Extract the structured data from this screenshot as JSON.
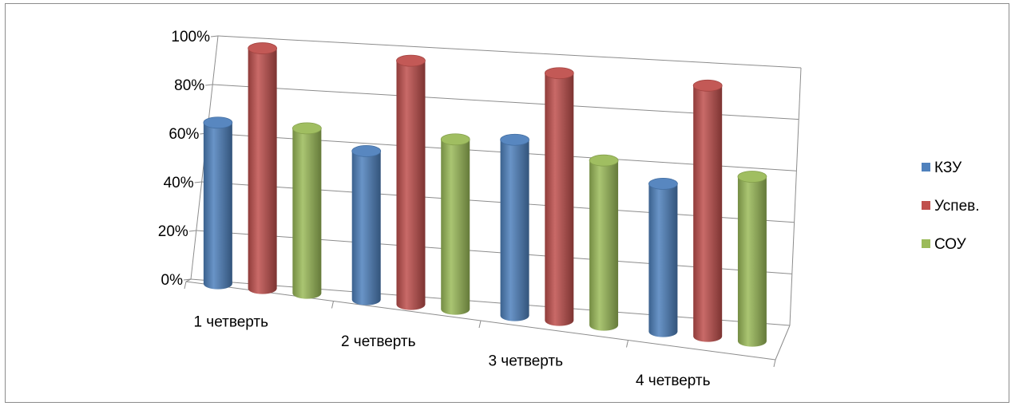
{
  "chart_data": {
    "type": "bar",
    "style": "3d-cylinder",
    "categories": [
      "1 четверть",
      "2 четверть",
      "3 четверть",
      "4 четверть"
    ],
    "series": [
      {
        "name": "КЗУ",
        "color": "#4f81bd",
        "values": [
          0.66,
          0.6,
          0.7,
          0.58
        ]
      },
      {
        "name": "Успев.",
        "color": "#c0504d",
        "values": [
          0.98,
          0.98,
          0.98,
          0.98
        ]
      },
      {
        "name": "СОУ",
        "color": "#9bbb59",
        "values": [
          0.67,
          0.68,
          0.65,
          0.64
        ]
      }
    ],
    "ylim": [
      0,
      1
    ],
    "yticks": [
      "0%",
      "20%",
      "40%",
      "60%",
      "80%",
      "100%"
    ],
    "grid": true,
    "legend": "right"
  }
}
